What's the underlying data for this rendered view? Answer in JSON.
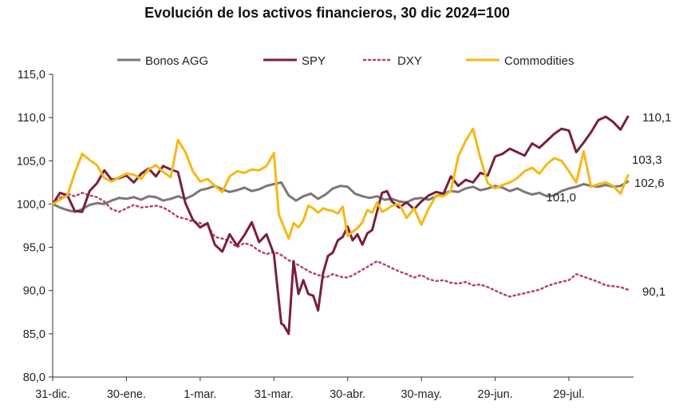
{
  "chart_data": {
    "type": "line",
    "title": "Evolución de los activos financieros, 30 dic 2024=100",
    "xlabel": "",
    "ylabel": "",
    "ylim": [
      80,
      115
    ],
    "y_ticks": [
      "80,0",
      "85,0",
      "90,0",
      "95,0",
      "100,0",
      "105,0",
      "110,0",
      "115,0"
    ],
    "x_ticks": [
      {
        "label": "31-dic.",
        "day": 0
      },
      {
        "label": "30-ene.",
        "day": 30
      },
      {
        "label": "1-mar.",
        "day": 60
      },
      {
        "label": "31-mar.",
        "day": 90
      },
      {
        "label": "30-abr.",
        "day": 120
      },
      {
        "label": "30-may.",
        "day": 150
      },
      {
        "label": "29-jun.",
        "day": 180
      },
      {
        "label": "29-jul.",
        "day": 210
      }
    ],
    "xlim": [
      0,
      235
    ],
    "legend_position": "top",
    "series": [
      {
        "name": "Bonos AGG",
        "color": "#7f7677",
        "dash": "",
        "end_label": "102,6",
        "x": [
          0,
          3,
          6,
          9,
          12,
          15,
          18,
          21,
          24,
          27,
          30,
          33,
          36,
          39,
          42,
          45,
          48,
          51,
          54,
          57,
          60,
          63,
          66,
          69,
          72,
          75,
          78,
          81,
          84,
          87,
          90,
          93,
          96,
          99,
          102,
          105,
          108,
          111,
          114,
          117,
          120,
          123,
          126,
          129,
          132,
          135,
          138,
          141,
          144,
          147,
          150,
          153,
          156,
          159,
          162,
          165,
          168,
          171,
          174,
          177,
          180,
          183,
          186,
          189,
          192,
          195,
          198,
          201,
          204,
          207,
          210,
          213,
          216,
          219,
          222,
          225,
          228,
          231,
          234
        ],
        "values": [
          100.0,
          99.6,
          99.3,
          99.1,
          99.4,
          99.9,
          100.1,
          100.0,
          100.4,
          100.7,
          100.6,
          100.8,
          100.5,
          100.9,
          100.8,
          100.4,
          100.6,
          100.9,
          100.6,
          101.0,
          101.6,
          101.8,
          102.1,
          101.7,
          101.4,
          101.6,
          101.9,
          101.5,
          101.7,
          102.1,
          102.3,
          102.5,
          101.0,
          100.4,
          100.9,
          101.2,
          100.6,
          101.1,
          101.8,
          102.1,
          102.0,
          101.2,
          100.9,
          100.7,
          100.9,
          100.5,
          100.6,
          100.3,
          100.2,
          100.6,
          100.7,
          100.5,
          100.9,
          101.2,
          101.5,
          101.4,
          101.8,
          102.0,
          101.6,
          101.8,
          102.1,
          101.9,
          101.5,
          101.8,
          101.4,
          101.1,
          101.3,
          100.9,
          101.0,
          101.5,
          101.8,
          102.0,
          102.3,
          102.1,
          102.0,
          102.2,
          102.0,
          102.1,
          102.6
        ]
      },
      {
        "name": "SPY",
        "color": "#7a1f3d",
        "dash": "",
        "end_label": "110,1",
        "x": [
          0,
          3,
          6,
          9,
          12,
          15,
          18,
          21,
          24,
          27,
          30,
          33,
          36,
          39,
          42,
          45,
          48,
          51,
          54,
          57,
          60,
          63,
          66,
          69,
          72,
          75,
          78,
          81,
          84,
          87,
          90,
          93,
          94,
          96,
          98,
          100,
          102,
          104,
          106,
          108,
          110,
          112,
          114,
          116,
          118,
          120,
          122,
          124,
          126,
          128,
          130,
          132,
          134,
          136,
          138,
          141,
          144,
          147,
          150,
          153,
          156,
          159,
          162,
          165,
          168,
          171,
          174,
          177,
          180,
          183,
          186,
          189,
          192,
          195,
          198,
          201,
          204,
          207,
          210,
          213,
          216,
          219,
          222,
          225,
          228,
          231,
          234
        ],
        "values": [
          100.0,
          101.3,
          101.0,
          99.2,
          99.1,
          101.5,
          102.4,
          103.9,
          102.8,
          103.0,
          103.3,
          102.5,
          103.5,
          104.1,
          103.2,
          104.4,
          104.0,
          103.7,
          100.1,
          98.2,
          97.3,
          97.8,
          95.3,
          94.5,
          96.5,
          95.2,
          96.4,
          97.9,
          95.6,
          96.5,
          94.2,
          86.2,
          86.0,
          85.0,
          93.4,
          89.6,
          91.2,
          89.6,
          89.4,
          87.7,
          92.0,
          94.0,
          94.4,
          95.8,
          96.2,
          97.4,
          95.8,
          96.5,
          95.3,
          96.6,
          97.0,
          99.2,
          101.3,
          101.5,
          100.3,
          99.6,
          100.2,
          99.4,
          100.3,
          101.0,
          101.4,
          101.2,
          103.2,
          102.1,
          102.8,
          102.5,
          103.6,
          103.3,
          105.5,
          105.8,
          106.4,
          106.0,
          105.6,
          107.0,
          106.5,
          107.3,
          108.1,
          108.7,
          108.5,
          106.0,
          107.1,
          108.3,
          109.7,
          110.1,
          109.5,
          108.6,
          110.1
        ]
      },
      {
        "name": "DXY",
        "color": "#b8406a",
        "dash": "2,4",
        "end_label": "90,1",
        "x": [
          0,
          3,
          6,
          9,
          12,
          15,
          18,
          21,
          24,
          27,
          30,
          33,
          36,
          39,
          42,
          45,
          48,
          51,
          54,
          57,
          60,
          63,
          66,
          69,
          72,
          75,
          78,
          81,
          84,
          87,
          90,
          93,
          96,
          99,
          102,
          105,
          108,
          111,
          114,
          117,
          120,
          123,
          126,
          129,
          132,
          135,
          138,
          141,
          144,
          147,
          150,
          153,
          156,
          159,
          162,
          165,
          168,
          171,
          174,
          177,
          180,
          183,
          186,
          189,
          192,
          195,
          198,
          201,
          204,
          207,
          210,
          213,
          216,
          219,
          222,
          225,
          228,
          231,
          234
        ],
        "values": [
          100.0,
          100.7,
          101.2,
          100.9,
          101.3,
          101.0,
          100.8,
          100.3,
          99.4,
          99.1,
          99.5,
          99.9,
          99.6,
          99.7,
          99.8,
          99.6,
          99.1,
          98.5,
          98.3,
          98.0,
          97.8,
          97.5,
          96.2,
          96.0,
          95.7,
          95.0,
          95.5,
          95.2,
          94.6,
          94.2,
          94.5,
          94.1,
          93.5,
          93.1,
          92.6,
          92.1,
          91.8,
          91.5,
          91.9,
          91.6,
          91.5,
          91.9,
          92.4,
          92.9,
          93.4,
          93.0,
          92.6,
          92.2,
          91.9,
          91.5,
          91.8,
          91.3,
          91.1,
          91.2,
          90.9,
          90.8,
          91.0,
          90.6,
          90.7,
          90.4,
          90.0,
          89.6,
          89.3,
          89.5,
          89.7,
          89.9,
          90.1,
          90.5,
          90.8,
          91.0,
          91.2,
          91.9,
          91.6,
          91.3,
          91.0,
          90.6,
          90.5,
          90.4,
          90.1
        ]
      },
      {
        "name": "Commodities",
        "color": "#f6b817",
        "dash": "",
        "end_label": "103,3",
        "x": [
          0,
          3,
          6,
          9,
          12,
          15,
          18,
          21,
          24,
          27,
          30,
          33,
          36,
          39,
          42,
          45,
          48,
          51,
          54,
          57,
          60,
          63,
          66,
          69,
          72,
          75,
          78,
          81,
          84,
          87,
          90,
          92,
          94,
          96,
          98,
          100,
          102,
          104,
          106,
          108,
          110,
          112,
          114,
          116,
          118,
          120,
          122,
          124,
          126,
          128,
          130,
          132,
          134,
          136,
          138,
          141,
          144,
          147,
          150,
          153,
          156,
          159,
          162,
          165,
          168,
          171,
          174,
          177,
          180,
          183,
          186,
          189,
          192,
          195,
          198,
          201,
          204,
          207,
          210,
          213,
          216,
          219,
          222,
          225,
          228,
          231,
          234
        ],
        "values": [
          100.0,
          100.5,
          101.0,
          103.6,
          105.8,
          105.1,
          104.5,
          103.0,
          102.6,
          103.1,
          103.5,
          103.4,
          102.9,
          104.0,
          104.5,
          103.7,
          103.1,
          107.4,
          106.0,
          103.8,
          102.6,
          102.9,
          102.1,
          101.4,
          103.2,
          103.8,
          103.6,
          104.0,
          103.9,
          104.4,
          105.9,
          98.8,
          97.4,
          96.0,
          97.8,
          97.3,
          98.1,
          99.8,
          99.5,
          99.0,
          99.5,
          99.3,
          99.2,
          98.9,
          99.7,
          96.3,
          96.8,
          97.2,
          97.9,
          99.3,
          99.0,
          100.2,
          99.1,
          99.4,
          99.8,
          100.0,
          98.4,
          99.5,
          97.6,
          99.5,
          101.0,
          100.9,
          101.5,
          105.5,
          107.3,
          108.7,
          105.3,
          102.4,
          101.8,
          102.2,
          102.5,
          103.0,
          103.8,
          104.2,
          103.5,
          104.6,
          105.3,
          105.0,
          103.8,
          102.5,
          106.1,
          102.0,
          102.3,
          102.5,
          102.1,
          101.2,
          103.3
        ]
      }
    ],
    "annotations": [
      {
        "text": "101,0",
        "series": "Bonos AGG",
        "day": 204
      }
    ]
  }
}
